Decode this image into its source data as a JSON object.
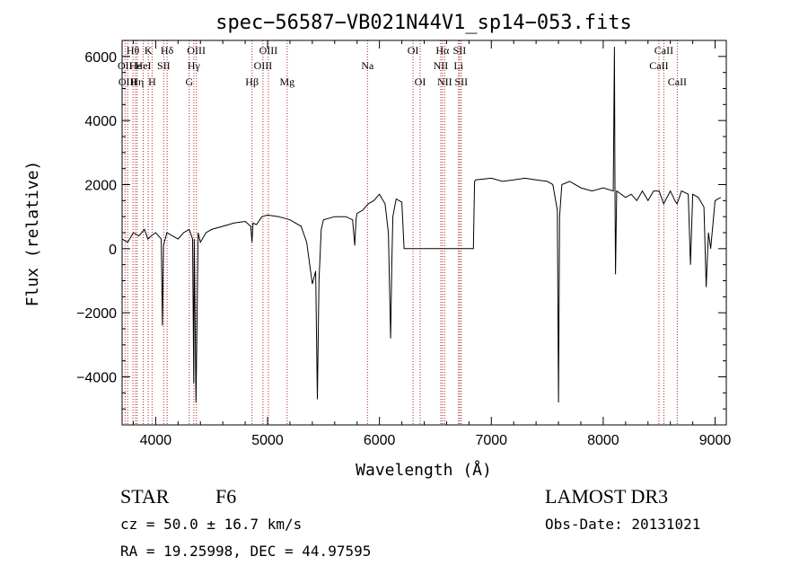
{
  "chart_data": {
    "type": "line",
    "title": "spec−56587−VB021N44V1_sp14−053.fits",
    "xlabel": "Wavelength (Å)",
    "ylabel": "Flux (relative)",
    "xlim": [
      3700,
      9100
    ],
    "ylim": [
      -5500,
      6500
    ],
    "x_ticks": [
      4000,
      5000,
      6000,
      7000,
      8000,
      9000
    ],
    "x_tick_labels": [
      "4000",
      "5000",
      "6000",
      "7000",
      "8000",
      "9000"
    ],
    "y_ticks": [
      6000,
      4000,
      2000,
      0,
      -2000,
      -4000
    ],
    "y_tick_labels": [
      "6000",
      "4000",
      "2000",
      "0",
      "−2000",
      "−4000"
    ],
    "series": [
      {
        "name": "spectrum",
        "x": [
          3700,
          3750,
          3800,
          3850,
          3900,
          3930,
          3960,
          4000,
          4050,
          4060,
          4070,
          4100,
          4150,
          4200,
          4250,
          4300,
          4330,
          4340,
          4345,
          4360,
          4380,
          4400,
          4450,
          4500,
          4600,
          4700,
          4800,
          4850,
          4861,
          4870,
          4900,
          4950,
          5000,
          5100,
          5200,
          5300,
          5350,
          5400,
          5430,
          5445,
          5460,
          5480,
          5500,
          5600,
          5700,
          5760,
          5780,
          5790,
          5800,
          5850,
          5900,
          5950,
          6000,
          6050,
          6080,
          6100,
          6110,
          6120,
          6130,
          6150,
          6200,
          6220,
          6230,
          6300,
          6500,
          6700,
          6840,
          6850,
          6860,
          7000,
          7100,
          7200,
          7300,
          7400,
          7500,
          7550,
          7590,
          7600,
          7610,
          7630,
          7700,
          7800,
          7900,
          8000,
          8090,
          8100,
          8105,
          8110,
          8120,
          8200,
          8250,
          8300,
          8350,
          8400,
          8450,
          8500,
          8540,
          8600,
          8640,
          8660,
          8700,
          8760,
          8780,
          8800,
          8850,
          8900,
          8920,
          8940,
          8960,
          9000,
          9050
        ],
        "y": [
          300,
          200,
          500,
          400,
          600,
          300,
          400,
          500,
          300,
          -2400,
          100,
          500,
          400,
          300,
          500,
          600,
          300,
          -4200,
          300,
          -4800,
          500,
          200,
          500,
          600,
          700,
          800,
          850,
          700,
          200,
          800,
          750,
          1000,
          1050,
          1000,
          900,
          700,
          200,
          -1100,
          -700,
          -4700,
          -1000,
          600,
          900,
          1000,
          1000,
          900,
          100,
          900,
          1100,
          1200,
          1400,
          1500,
          1700,
          1400,
          500,
          -2800,
          -500,
          1000,
          1200,
          1550,
          1450,
          0,
          0,
          0,
          0,
          0,
          0,
          2100,
          2150,
          2200,
          2100,
          2150,
          2200,
          2150,
          2100,
          2000,
          1200,
          -4800,
          1000,
          2000,
          2100,
          1900,
          1800,
          1900,
          1800,
          6300,
          1800,
          -800,
          1800,
          1600,
          1700,
          1500,
          1800,
          1500,
          1800,
          1800,
          1400,
          1800,
          1500,
          1400,
          1800,
          1700,
          -500,
          1700,
          1600,
          1300,
          -1200,
          500,
          0,
          1500,
          1600
        ]
      }
    ],
    "lines": [
      {
        "wavelength": 3727,
        "labels": [
          "OII"
        ],
        "level": 2
      },
      {
        "wavelength": 3750,
        "labels": [
          "OIII"
        ],
        "level": 3
      },
      {
        "wavelength": 3797,
        "labels": [
          "Hθ"
        ],
        "level": 1
      },
      {
        "wavelength": 3820,
        "labels": [
          "He"
        ],
        "level": 2
      },
      {
        "wavelength": 3835,
        "labels": [
          "Hη"
        ],
        "level": 3
      },
      {
        "wavelength": 3889,
        "labels": [
          "HeI"
        ],
        "level": 2
      },
      {
        "wavelength": 3934,
        "labels": [
          "K"
        ],
        "level": 1
      },
      {
        "wavelength": 3968,
        "labels": [
          "H"
        ],
        "level": 3
      },
      {
        "wavelength": 4072,
        "labels": [
          "SII"
        ],
        "level": 2
      },
      {
        "wavelength": 4102,
        "labels": [
          "Hδ"
        ],
        "level": 1
      },
      {
        "wavelength": 4300,
        "labels": [
          "G"
        ],
        "level": 3
      },
      {
        "wavelength": 4341,
        "labels": [
          "Hγ"
        ],
        "level": 2
      },
      {
        "wavelength": 4363,
        "labels": [
          "OIII"
        ],
        "level": 1
      },
      {
        "wavelength": 4861,
        "labels": [
          "Hβ"
        ],
        "level": 3
      },
      {
        "wavelength": 4959,
        "labels": [
          "OIII"
        ],
        "level": 2
      },
      {
        "wavelength": 5007,
        "labels": [
          "OIII"
        ],
        "level": 1
      },
      {
        "wavelength": 5175,
        "labels": [
          "Mg"
        ],
        "level": 3
      },
      {
        "wavelength": 5893,
        "labels": [
          "Na"
        ],
        "level": 2
      },
      {
        "wavelength": 6300,
        "labels": [
          "OI"
        ],
        "level": 1
      },
      {
        "wavelength": 6364,
        "labels": [
          "OI"
        ],
        "level": 3
      },
      {
        "wavelength": 6548,
        "labels": [
          "NII"
        ],
        "level": 2
      },
      {
        "wavelength": 6563,
        "labels": [
          "Hα"
        ],
        "level": 1
      },
      {
        "wavelength": 6583,
        "labels": [
          "NII"
        ],
        "level": 3
      },
      {
        "wavelength": 6707,
        "labels": [
          "Li"
        ],
        "level": 2
      },
      {
        "wavelength": 6716,
        "labels": [
          "SII"
        ],
        "level": 1
      },
      {
        "wavelength": 6731,
        "labels": [
          "SII"
        ],
        "level": 3
      },
      {
        "wavelength": 8498,
        "labels": [
          "CaII"
        ],
        "level": 2
      },
      {
        "wavelength": 8542,
        "labels": [
          "CaII"
        ],
        "level": 1
      },
      {
        "wavelength": 8662,
        "labels": [
          "CaII"
        ],
        "level": 3
      }
    ]
  },
  "info": {
    "class_label": "STAR",
    "subclass": "F6",
    "survey": "LAMOST DR3",
    "redshift": "cz =  50.0 ± 16.7 km/s",
    "obs_date": "Obs-Date: 20131021",
    "coords": "RA =  19.25998, DEC =  44.97595"
  }
}
